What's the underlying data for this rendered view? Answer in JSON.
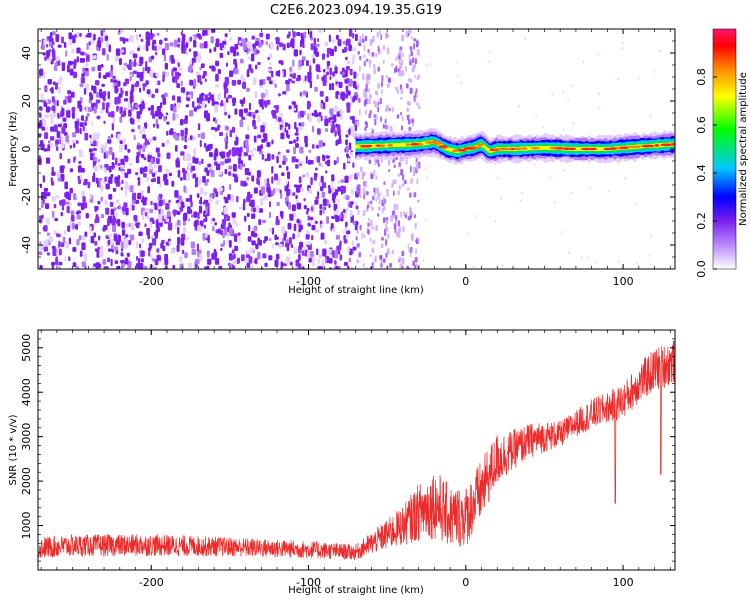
{
  "title": "C2E6.2023.094.19.35.G19",
  "colors": {
    "snr_line": "#ee2a2a",
    "noise_purple": "#7a1ef0",
    "frame": "#000000"
  },
  "chart_data": [
    {
      "type": "heatmap",
      "xlabel": "Height of straight line (km)",
      "ylabel": "Frequency (Hz)",
      "xlim": [
        -272,
        133
      ],
      "ylim": [
        -50,
        50
      ],
      "xticks": [
        -200,
        -100,
        0,
        100
      ],
      "yticks": [
        -40,
        -20,
        0,
        20,
        40
      ],
      "colorbar": {
        "label": "Normalized spectral amplitude",
        "range": [
          0,
          1
        ],
        "ticks": [
          0.0,
          0.2,
          0.4,
          0.6,
          0.8
        ],
        "tick_labels": [
          "0.0",
          "0.2",
          "0.4",
          "0.6",
          "0.8"
        ],
        "colormap": [
          "#ffffff",
          "#7a1ef0",
          "#0000ff",
          "#00c8ff",
          "#00ff00",
          "#ffff00",
          "#ff8000",
          "#ff0000",
          "#ff1470"
        ]
      },
      "regions": [
        {
          "name": "noise",
          "x_range": [
            -272,
            -70
          ],
          "freq_range": [
            -50,
            50
          ],
          "amplitude": 0.15
        },
        {
          "name": "transition",
          "x_range": [
            -70,
            -30
          ],
          "freq_range": [
            -50,
            50
          ],
          "amplitude": 0.08
        },
        {
          "name": "signal",
          "x_range": [
            -70,
            133
          ],
          "freq_center": 0,
          "amplitude": 0.9
        }
      ],
      "signal_track": {
        "x": [
          -70,
          -50,
          -30,
          -20,
          -12,
          -5,
          0,
          5,
          10,
          15,
          20,
          30,
          50,
          70,
          90,
          110,
          133
        ],
        "freq": [
          1,
          1.5,
          2,
          3,
          0,
          -1,
          0,
          0.5,
          2,
          -1,
          0,
          0,
          0.5,
          0,
          0,
          1,
          2
        ]
      }
    },
    {
      "type": "line",
      "xlabel": "Height of straight line (km)",
      "ylabel": "SNR (10 * v/v)",
      "xlim": [
        -272,
        133
      ],
      "ylim": [
        0,
        5400
      ],
      "xticks": [
        -200,
        -100,
        0,
        100
      ],
      "yticks": [
        1000,
        2000,
        3000,
        4000,
        5000
      ],
      "series": [
        {
          "x": [
            -272,
            -250,
            -200,
            -150,
            -100,
            -70,
            -60,
            -50,
            -40,
            -30,
            -20,
            -10,
            0,
            10,
            20,
            30,
            40,
            50,
            60,
            70,
            80,
            90,
            100,
            110,
            120,
            133
          ],
          "mean": [
            500,
            550,
            560,
            520,
            460,
            400,
            600,
            800,
            1000,
            1300,
            1500,
            1200,
            1200,
            1800,
            2500,
            2700,
            2900,
            3000,
            3050,
            3300,
            3500,
            3650,
            3800,
            4200,
            4500,
            4700
          ],
          "spread": [
            250,
            250,
            250,
            220,
            200,
            180,
            250,
            350,
            450,
            650,
            800,
            700,
            700,
            700,
            600,
            450,
            400,
            350,
            300,
            300,
            350,
            350,
            400,
            450,
            500,
            500
          ]
        }
      ],
      "annotations": [
        {
          "x": 95,
          "y": 1500,
          "note": "drop"
        },
        {
          "x": 124,
          "y": 2150,
          "note": "drop"
        }
      ]
    }
  ]
}
